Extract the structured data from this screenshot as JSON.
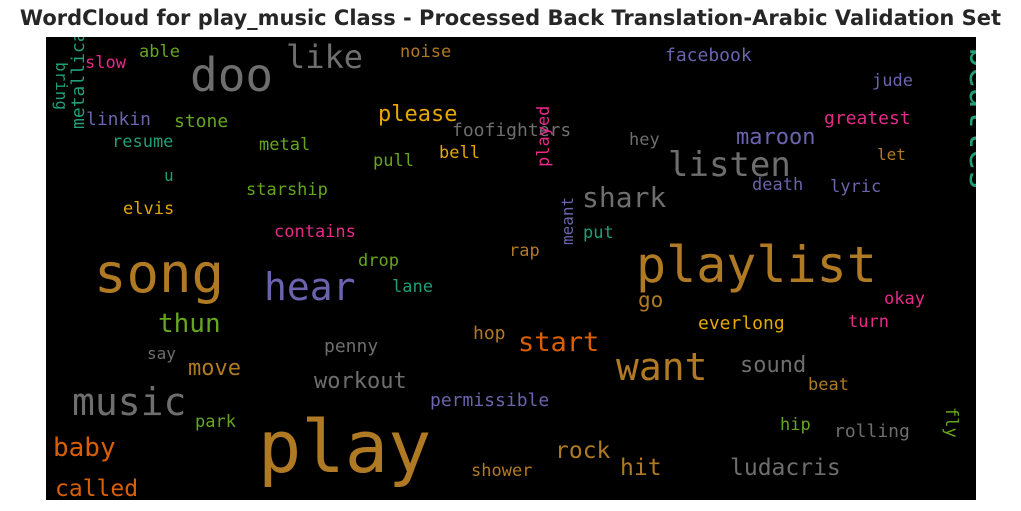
{
  "chart_data": {
    "type": "wordcloud",
    "title": "WordCloud for play_music Class - Processed Back Translation-Arabic Validation Set",
    "background": "#000000",
    "words": [
      {
        "text": "play",
        "color": "#b07a24"
      },
      {
        "text": "song",
        "color": "#b07a24"
      },
      {
        "text": "playlist",
        "color": "#b07a24"
      },
      {
        "text": "doo",
        "color": "#6e6e6e"
      },
      {
        "text": "music",
        "color": "#6e6e6e"
      },
      {
        "text": "hear",
        "color": "#6a63ad"
      },
      {
        "text": "want",
        "color": "#b07a24"
      },
      {
        "text": "listen",
        "color": "#6e6e6e"
      },
      {
        "text": "beatles",
        "color": "#1f9e77"
      },
      {
        "text": "like",
        "color": "#6e6e6e"
      },
      {
        "text": "shark",
        "color": "#6e6e6e"
      },
      {
        "text": "start",
        "color": "#d95f02"
      },
      {
        "text": "thun",
        "color": "#66a61e"
      },
      {
        "text": "baby",
        "color": "#d95f02"
      },
      {
        "text": "called",
        "color": "#d95f02"
      },
      {
        "text": "rock",
        "color": "#b07a24"
      },
      {
        "text": "hit",
        "color": "#b07a24"
      },
      {
        "text": "ludacris",
        "color": "#6e6e6e"
      },
      {
        "text": "workout",
        "color": "#6e6e6e"
      },
      {
        "text": "move",
        "color": "#b07a24"
      },
      {
        "text": "sound",
        "color": "#6e6e6e"
      },
      {
        "text": "maroon",
        "color": "#6a63ad"
      },
      {
        "text": "please",
        "color": "#e6a800"
      },
      {
        "text": "go",
        "color": "#b07a24"
      },
      {
        "text": "everlong",
        "color": "#e6a800"
      },
      {
        "text": "hop",
        "color": "#b07a24"
      },
      {
        "text": "rolling",
        "color": "#6e6e6e"
      },
      {
        "text": "permissible",
        "color": "#6a63ad"
      },
      {
        "text": "penny",
        "color": "#6e6e6e"
      },
      {
        "text": "foofighters",
        "color": "#6e6e6e"
      },
      {
        "text": "shower",
        "color": "#b07a24"
      },
      {
        "text": "facebook",
        "color": "#6a63ad"
      },
      {
        "text": "greatest",
        "color": "#e7298a"
      },
      {
        "text": "metallicas",
        "color": "#1f9e77"
      },
      {
        "text": "linkin",
        "color": "#6a63ad"
      },
      {
        "text": "stone",
        "color": "#66a61e"
      },
      {
        "text": "resume",
        "color": "#1f9e77"
      },
      {
        "text": "metal",
        "color": "#66a61e"
      },
      {
        "text": "pull",
        "color": "#66a61e"
      },
      {
        "text": "bell",
        "color": "#e6a800"
      },
      {
        "text": "starship",
        "color": "#66a61e"
      },
      {
        "text": "elvis",
        "color": "#e6a800"
      },
      {
        "text": "contains",
        "color": "#e7298a"
      },
      {
        "text": "played",
        "color": "#e7298a"
      },
      {
        "text": "drop",
        "color": "#66a61e"
      },
      {
        "text": "lane",
        "color": "#1f9e77"
      },
      {
        "text": "rap",
        "color": "#b07a24"
      },
      {
        "text": "put",
        "color": "#1f9e77"
      },
      {
        "text": "meant",
        "color": "#6a63ad"
      },
      {
        "text": "death",
        "color": "#6a63ad"
      },
      {
        "text": "lyric",
        "color": "#6a63ad"
      },
      {
        "text": "jude",
        "color": "#6a63ad"
      },
      {
        "text": "hey",
        "color": "#6e6e6e"
      },
      {
        "text": "let",
        "color": "#b07a24"
      },
      {
        "text": "okay",
        "color": "#e7298a"
      },
      {
        "text": "turn",
        "color": "#e7298a"
      },
      {
        "text": "beat",
        "color": "#b07a24"
      },
      {
        "text": "hip",
        "color": "#66a61e"
      },
      {
        "text": "fly",
        "color": "#66a61e"
      },
      {
        "text": "slow",
        "color": "#e7298a"
      },
      {
        "text": "able",
        "color": "#66a61e"
      },
      {
        "text": "noise",
        "color": "#b07a24"
      },
      {
        "text": "bring",
        "color": "#1f9e77"
      },
      {
        "text": "u",
        "color": "#1f9e77"
      },
      {
        "text": "say",
        "color": "#6e6e6e"
      },
      {
        "text": "park",
        "color": "#66a61e"
      }
    ]
  }
}
